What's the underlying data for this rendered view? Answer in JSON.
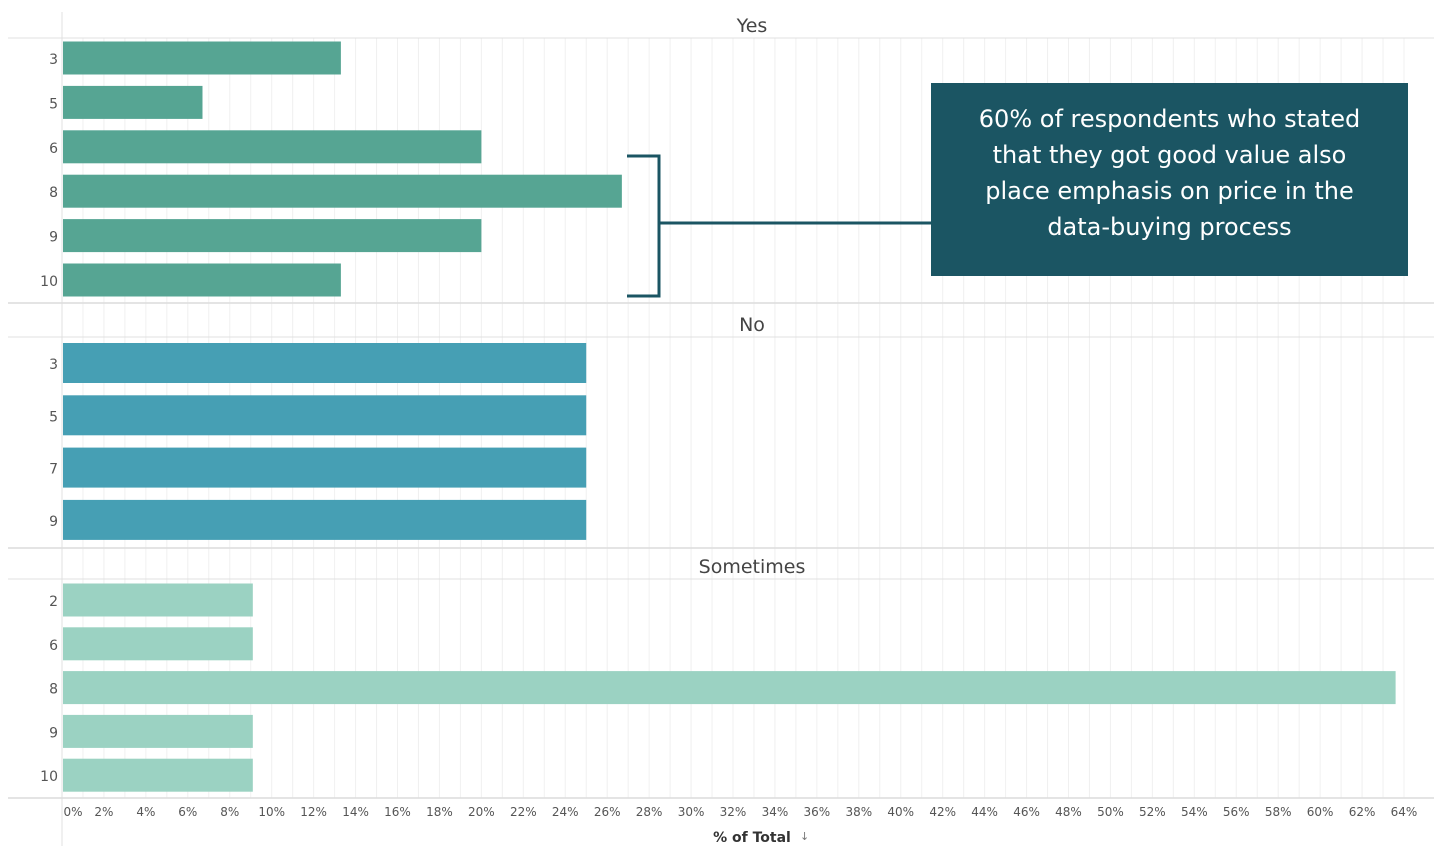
{
  "chart_data": {
    "type": "bar",
    "orientation": "horizontal",
    "xlabel": "% of Total",
    "xlim": [
      0,
      64
    ],
    "x_ticks": [
      "0%",
      "2%",
      "4%",
      "6%",
      "8%",
      "10%",
      "12%",
      "14%",
      "16%",
      "18%",
      "20%",
      "22%",
      "24%",
      "26%",
      "28%",
      "30%",
      "32%",
      "34%",
      "36%",
      "38%",
      "40%",
      "42%",
      "44%",
      "46%",
      "48%",
      "50%",
      "52%",
      "54%",
      "56%",
      "58%",
      "60%",
      "62%",
      "64%"
    ],
    "grid": true,
    "panels": [
      {
        "title": "Yes",
        "color": "#56a593",
        "categories": [
          "3",
          "5",
          "6",
          "8",
          "9",
          "10"
        ],
        "values": [
          13.3,
          6.7,
          20.0,
          26.7,
          20.0,
          13.3
        ]
      },
      {
        "title": "No",
        "color": "#469fb4",
        "categories": [
          "3",
          "5",
          "7",
          "9"
        ],
        "values": [
          25.0,
          25.0,
          25.0,
          25.0
        ]
      },
      {
        "title": "Sometimes",
        "color": "#9bd2c2",
        "categories": [
          "2",
          "6",
          "8",
          "9",
          "10"
        ],
        "values": [
          9.1,
          9.1,
          63.6,
          9.1,
          9.1
        ]
      }
    ],
    "annotation": "60% of respondents who stated\nthat they got good value also\nplace emphasis on price in the\ndata-buying process"
  },
  "colors": {
    "annotation_bg": "#1b5563",
    "bracket": "#1b5563",
    "grid": "#ececec",
    "axis_text": "#555555"
  }
}
